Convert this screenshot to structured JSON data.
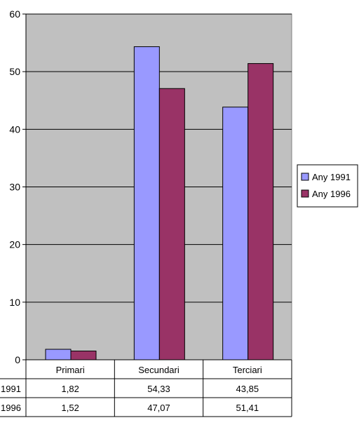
{
  "chart_data": {
    "type": "bar",
    "categories": [
      "Primari",
      "Secundari",
      "Terciari"
    ],
    "series": [
      {
        "name": "Any 1991",
        "row_label": "1991",
        "values": [
          1.82,
          54.33,
          43.85
        ],
        "display": [
          "1,82",
          "54,33",
          "43,85"
        ],
        "color": "#9999ff"
      },
      {
        "name": "Any 1996",
        "row_label": "1996",
        "values": [
          1.52,
          47.07,
          51.41
        ],
        "display": [
          "1,52",
          "47,07",
          "51,41"
        ],
        "color": "#993366"
      }
    ],
    "ylim": [
      0,
      60
    ],
    "yticks": [
      0,
      10,
      20,
      30,
      40,
      50,
      60
    ],
    "grid": true,
    "plot_background": "#c0c0c0",
    "legend_position": "right",
    "data_table": true
  }
}
